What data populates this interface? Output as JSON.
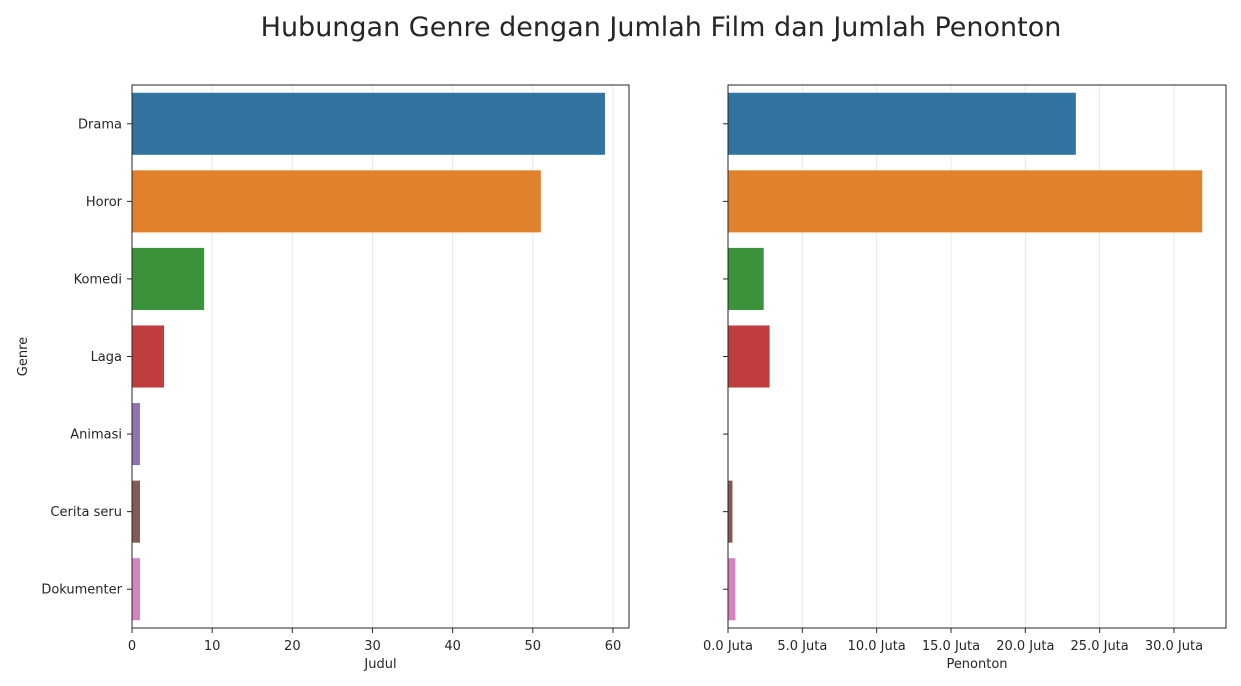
{
  "title": "Hubungan Genre dengan Jumlah Film dan Jumlah Penonton",
  "chart_data": [
    {
      "type": "bar",
      "orientation": "horizontal",
      "ylabel": "Genre",
      "xlabel": "Judul",
      "categories": [
        "Drama",
        "Horor",
        "Komedi",
        "Laga",
        "Animasi",
        "Cerita seru",
        "Dokumenter"
      ],
      "values": [
        59,
        51,
        9,
        4,
        1,
        1,
        1
      ],
      "colors": [
        "#3274a1",
        "#e1812c",
        "#3a923a",
        "#c03d3e",
        "#9372b2",
        "#845b53",
        "#d684bd"
      ],
      "xlim": [
        0,
        62
      ],
      "xticks": [
        0,
        10,
        20,
        30,
        40,
        50,
        60
      ],
      "xtick_labels": [
        "0",
        "10",
        "20",
        "30",
        "40",
        "50",
        "60"
      ],
      "grid": "x"
    },
    {
      "type": "bar",
      "orientation": "horizontal",
      "xlabel": "Penonton",
      "categories": [
        "Drama",
        "Horor",
        "Komedi",
        "Laga",
        "Animasi",
        "Cerita seru",
        "Dokumenter"
      ],
      "values": [
        23400000,
        31900000,
        2400000,
        2800000,
        0,
        300000,
        500000
      ],
      "colors": [
        "#3274a1",
        "#e1812c",
        "#3a923a",
        "#c03d3e",
        "#9372b2",
        "#845b53",
        "#d684bd"
      ],
      "xlim": [
        0,
        33500000
      ],
      "xticks": [
        0,
        5000000,
        10000000,
        15000000,
        20000000,
        25000000,
        30000000
      ],
      "xtick_labels": [
        "0.0 Juta",
        "5.0 Juta",
        "10.0 Juta",
        "15.0 Juta",
        "20.0 Juta",
        "25.0 Juta",
        "30.0 Juta"
      ],
      "grid": "x"
    }
  ]
}
